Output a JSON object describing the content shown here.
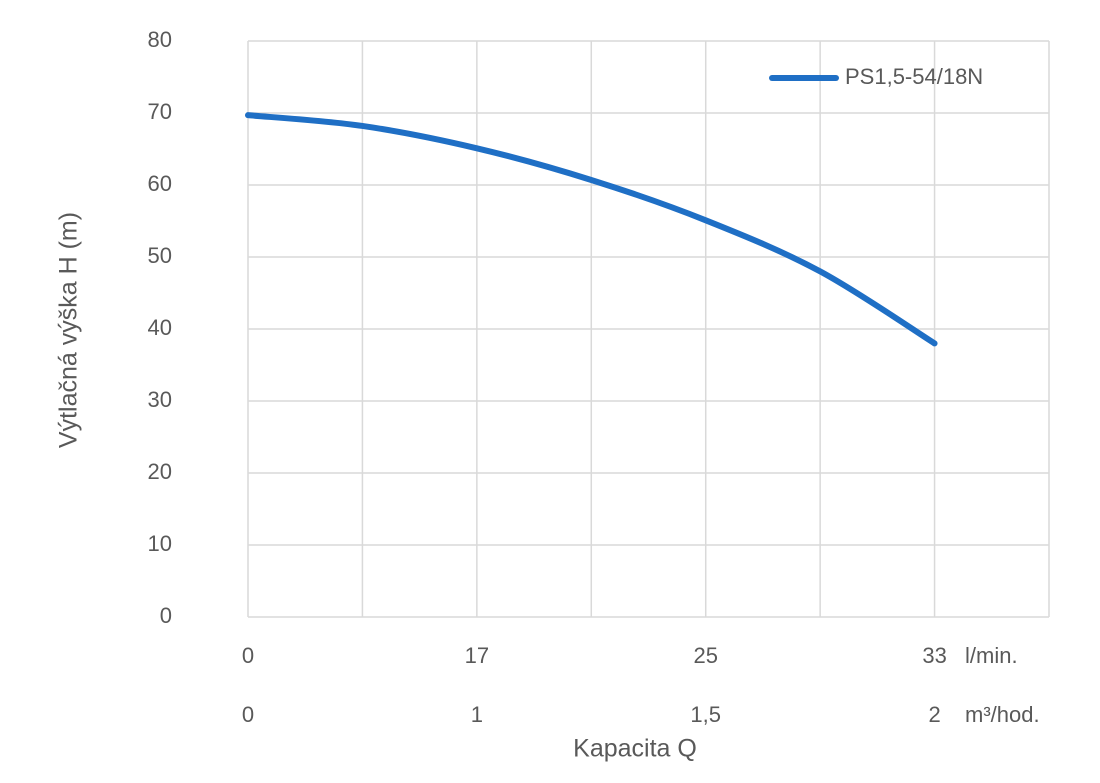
{
  "chart_data": {
    "type": "line",
    "y_label": "Výtlačná výška H (m)",
    "x_label": "Kapacita Q",
    "categories": [
      "0",
      null,
      "17",
      null,
      "25",
      null,
      "33",
      null
    ],
    "x_unit": "l/min.",
    "categories2": [
      "0",
      null,
      "1",
      null,
      "1,5",
      null,
      "2",
      null
    ],
    "x2_unit": "m³/hod.",
    "series": [
      {
        "name": "PS1,5-54/18N",
        "color": "#1f6fc5",
        "values": [
          69.7,
          68.2,
          65.1,
          60.7,
          55.1,
          48,
          38,
          null
        ]
      }
    ],
    "ylim": [
      0,
      80
    ],
    "yticks": [
      0,
      10,
      20,
      30,
      40,
      50,
      60,
      70,
      80
    ],
    "grid": true,
    "legend": "top-right"
  }
}
